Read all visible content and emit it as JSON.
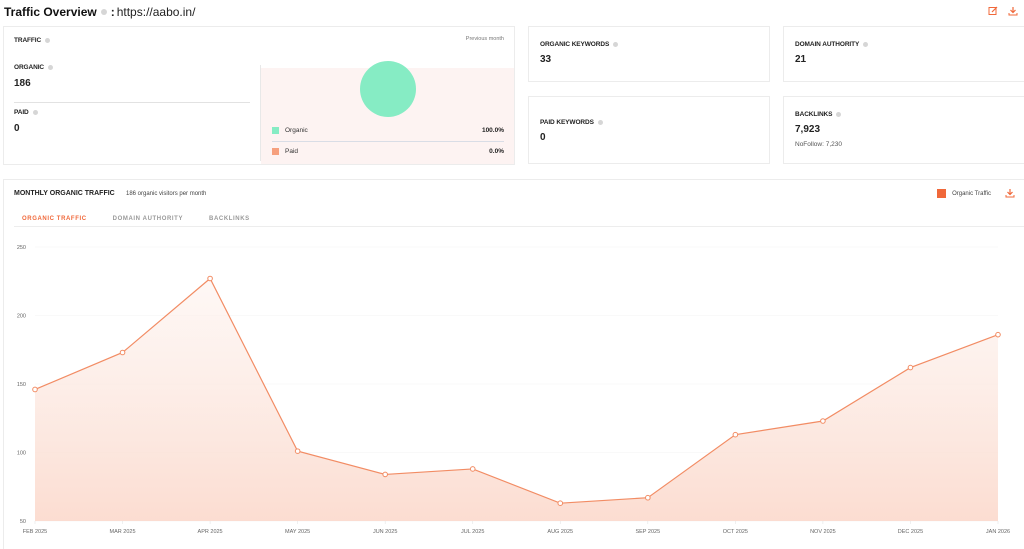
{
  "header": {
    "title": "Traffic Overview",
    "separator": ":",
    "url": "https://aabo.in/",
    "actions": [
      {
        "icon": "edit-icon"
      },
      {
        "icon": "download-icon"
      }
    ]
  },
  "traffic": {
    "label": "TRAFFIC",
    "period": "Previous month",
    "organic_label": "ORGANIC",
    "organic_value": "186",
    "paid_label": "PAID",
    "paid_value": "0",
    "legend": [
      {
        "name": "Organic",
        "percent": "100.0%",
        "color": "#86ecc4"
      },
      {
        "name": "Paid",
        "percent": "0.0%",
        "color": "#f6a07e"
      }
    ]
  },
  "stats": {
    "organic_keywords": {
      "label": "ORGANIC KEYWORDS",
      "value": "33"
    },
    "paid_keywords": {
      "label": "PAID KEYWORDS",
      "value": "0"
    },
    "domain_authority": {
      "label": "DOMAIN AUTHORITY",
      "value": "21"
    },
    "backlinks": {
      "label": "BACKLINKS",
      "value": "7,923",
      "sub": "NoFollow: 7,230"
    }
  },
  "monthly": {
    "title": "MONTHLY ORGANIC TRAFFIC",
    "subtitle": "186 organic visitors per month",
    "legend_label": "Organic Traffic",
    "tabs": [
      {
        "label": "ORGANIC TRAFFIC",
        "active": true
      },
      {
        "label": "DOMAIN AUTHORITY",
        "active": false
      },
      {
        "label": "BACKLINKS",
        "active": false
      }
    ]
  },
  "colors": {
    "accent": "#f0683a",
    "line": "#f28c64",
    "organic": "#86ecc4",
    "paid": "#f6a07e"
  },
  "chart_data": {
    "type": "area",
    "title": "MONTHLY ORGANIC TRAFFIC",
    "categories": [
      "FEB 2025",
      "MAR 2025",
      "APR 2025",
      "MAY 2025",
      "JUN 2025",
      "JUL 2025",
      "AUG 2025",
      "SEP 2025",
      "OCT 2025",
      "NOV 2025",
      "DEC 2025",
      "JAN 2026"
    ],
    "series": [
      {
        "name": "Organic Traffic",
        "values": [
          146,
          173,
          227,
          101,
          84,
          88,
          63,
          67,
          113,
          123,
          162,
          186
        ]
      }
    ],
    "xlabel": "",
    "ylabel": "",
    "ylim": [
      50,
      250
    ],
    "yticks": [
      50,
      100,
      150,
      200,
      250
    ],
    "grid": true,
    "legend_position": "top-right"
  }
}
